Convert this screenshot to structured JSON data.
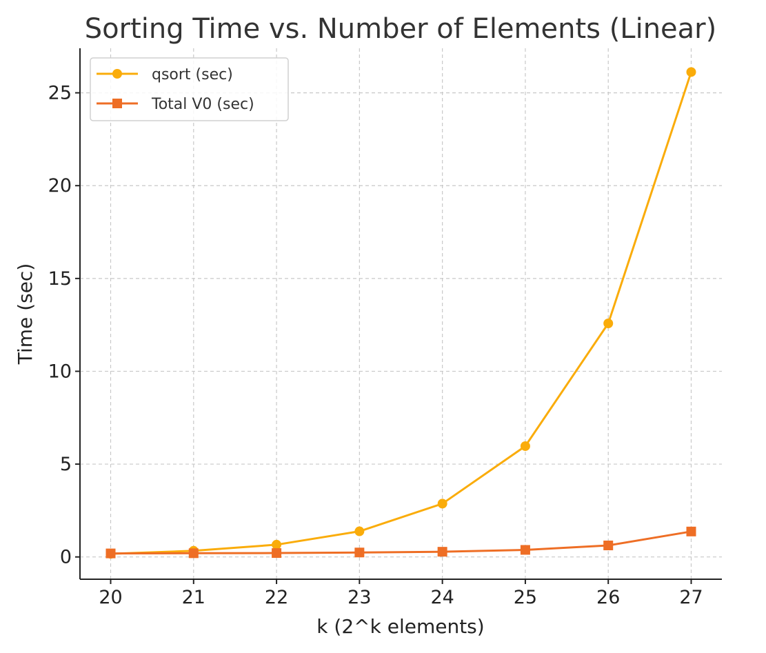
{
  "chart_data": {
    "type": "line",
    "title": "Sorting Time vs. Number of Elements (Linear)",
    "xlabel": "k (2^k elements)",
    "ylabel": "Time (sec)",
    "x": [
      20,
      21,
      22,
      23,
      24,
      25,
      26,
      27
    ],
    "xlim": [
      19.63,
      27.37
    ],
    "ylim": [
      -1.2,
      27.4
    ],
    "xticks": [
      20,
      21,
      22,
      23,
      24,
      25,
      26,
      27
    ],
    "yticks": [
      0,
      5,
      10,
      15,
      20,
      25
    ],
    "grid": true,
    "legend_position": "top-left",
    "series": [
      {
        "name": "qsort (sec)",
        "marker": "circle",
        "color": "#FAAC0A",
        "values": [
          0.17,
          0.33,
          0.66,
          1.38,
          2.87,
          5.97,
          12.58,
          26.12
        ]
      },
      {
        "name": "Total V0 (sec)",
        "marker": "square",
        "color": "#EE6E25",
        "values": [
          0.19,
          0.2,
          0.21,
          0.24,
          0.28,
          0.38,
          0.62,
          1.37
        ]
      }
    ]
  }
}
